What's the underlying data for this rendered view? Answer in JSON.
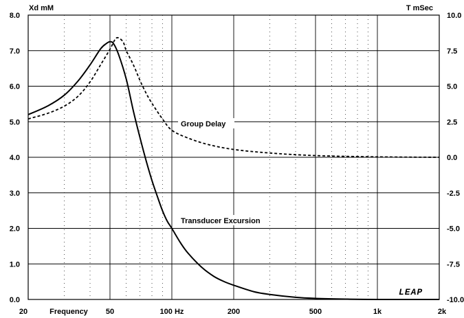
{
  "chart_data": {
    "type": "line",
    "x_scale": "log",
    "xlabel": "Frequency",
    "ylabel_left": "Xd mM",
    "ylabel_right": "T mSec",
    "xlim": [
      20,
      2000
    ],
    "ylim_left": [
      0,
      8
    ],
    "ylim_right": [
      -10,
      10
    ],
    "x_ticks": [
      {
        "value": 20,
        "label": "20"
      },
      {
        "value": 50,
        "label": "50"
      },
      {
        "value": 100,
        "label": "100 Hz"
      },
      {
        "value": 200,
        "label": "200"
      },
      {
        "value": 500,
        "label": "500"
      },
      {
        "value": 1000,
        "label": "1k"
      },
      {
        "value": 2000,
        "label": "2k"
      }
    ],
    "y_left_ticks": [
      "0.0",
      "1.0",
      "2.0",
      "3.0",
      "4.0",
      "5.0",
      "6.0",
      "7.0",
      "8.0"
    ],
    "y_right_ticks": [
      "-10.0",
      "-7.5",
      "-5.0",
      "-2.5",
      "0.0",
      "2.5",
      "5.0",
      "7.5",
      "10.0"
    ],
    "grid": true,
    "logo": "LEAP",
    "series": [
      {
        "name": "Transducer Excursion",
        "axis": "left",
        "style": "solid",
        "x": [
          20,
          25,
          30,
          35,
          40,
          45,
          48,
          50,
          52,
          55,
          60,
          65,
          70,
          75,
          80,
          85,
          90,
          95,
          100,
          110,
          120,
          140,
          160,
          180,
          200,
          250,
          300,
          400,
          500,
          700,
          1000,
          2000
        ],
        "y": [
          5.2,
          5.45,
          5.75,
          6.15,
          6.6,
          7.05,
          7.2,
          7.25,
          7.2,
          6.9,
          6.2,
          5.3,
          4.55,
          3.9,
          3.35,
          2.9,
          2.5,
          2.2,
          2.0,
          1.6,
          1.3,
          0.9,
          0.65,
          0.5,
          0.4,
          0.22,
          0.14,
          0.06,
          0.03,
          0.01,
          0.0,
          0.0
        ]
      },
      {
        "name": "Group Delay",
        "axis": "right",
        "style": "dashed",
        "x": [
          20,
          25,
          30,
          35,
          40,
          45,
          50,
          53,
          55,
          58,
          60,
          65,
          70,
          75,
          80,
          90,
          100,
          120,
          150,
          200,
          300,
          500,
          1000,
          2000
        ],
        "y": [
          2.7,
          3.1,
          3.6,
          4.3,
          5.3,
          6.5,
          7.6,
          8.3,
          8.4,
          8.1,
          7.5,
          6.5,
          5.4,
          4.5,
          3.8,
          2.7,
          1.9,
          1.35,
          0.9,
          0.55,
          0.3,
          0.12,
          0.03,
          0.0
        ]
      }
    ],
    "annotations": [
      {
        "text": "Group Delay",
        "series": 1
      },
      {
        "text": "Transducer Excursion",
        "series": 0
      }
    ]
  }
}
